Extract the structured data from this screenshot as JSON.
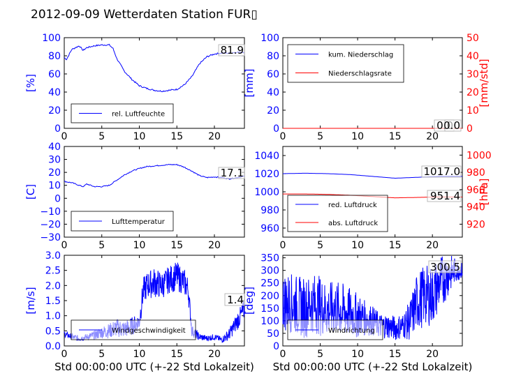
{
  "title": "2012-09-09 Wetterdaten Station FUR▯",
  "colors": {
    "primary": "#0000ff",
    "secondary": "#ff0000",
    "axis": "#000000"
  },
  "chart_data": [
    {
      "type": "line",
      "ylabel": "[%]",
      "ylim": [
        0,
        100
      ],
      "xlim": [
        0,
        24
      ],
      "xticks": [
        0,
        5,
        10,
        15,
        20
      ],
      "yticks": [
        0,
        20,
        40,
        60,
        80,
        100
      ],
      "readout": "81.9",
      "legend_placement": "lower-left",
      "series": [
        {
          "name": "rel. Luftfeuchte",
          "color": "#0000ff",
          "x": [
            0,
            0.3,
            1,
            2,
            2.5,
            3,
            4,
            5,
            6,
            6.5,
            7,
            8,
            9,
            10,
            11,
            12,
            13,
            14,
            15,
            16,
            17,
            18,
            19,
            20,
            21,
            22,
            23,
            24
          ],
          "y": [
            78,
            76,
            87,
            91,
            86,
            89,
            91,
            92,
            92,
            88,
            77,
            63,
            54,
            47,
            44,
            42,
            41,
            42,
            43,
            48,
            57,
            71,
            79,
            82,
            83,
            83,
            84,
            84
          ]
        }
      ]
    },
    {
      "type": "line",
      "ylabel": "[mm]",
      "ylabel_right": "[mm/std]",
      "ylim": [
        0,
        100
      ],
      "ylim_right": [
        0,
        50
      ],
      "xlim": [
        0,
        24
      ],
      "xticks": [
        0,
        5,
        10,
        15,
        20
      ],
      "yticks": [
        0,
        20,
        40,
        60,
        80,
        100
      ],
      "yticks_right": [
        0,
        10,
        20,
        30,
        40,
        50
      ],
      "readout": "0.0",
      "readout2": "0.0",
      "legend_placement": "upper-left",
      "series": [
        {
          "name": "kum. Niederschlag",
          "color": "#0000ff",
          "axis": "left",
          "x": [
            0,
            24
          ],
          "y": [
            0,
            0
          ]
        },
        {
          "name": "Niederschlagsrate",
          "color": "#ff0000",
          "axis": "right",
          "x": [
            0,
            24
          ],
          "y": [
            0,
            0
          ]
        }
      ]
    },
    {
      "type": "line",
      "ylabel": "[C]",
      "ylim": [
        -30,
        40
      ],
      "xlim": [
        0,
        24
      ],
      "xticks": [
        0,
        5,
        10,
        15,
        20
      ],
      "yticks": [
        -30,
        -20,
        -10,
        0,
        10,
        20,
        30,
        40
      ],
      "readout": "17.1",
      "legend_placement": "lower-left",
      "series": [
        {
          "name": "Lufttemperatur",
          "color": "#0000ff",
          "x": [
            0,
            1,
            2,
            2.5,
            3,
            4,
            5,
            6,
            7,
            8,
            9,
            10,
            11,
            12,
            13,
            14,
            15,
            16,
            17,
            18,
            19,
            20,
            21,
            22,
            23,
            24
          ],
          "y": [
            13,
            12,
            10,
            9,
            11,
            9,
            9,
            10,
            14,
            18,
            21,
            23,
            24.5,
            25,
            25.5,
            26,
            26,
            24,
            21,
            17.5,
            16,
            16.5,
            16,
            15,
            16,
            17
          ]
        }
      ]
    },
    {
      "type": "line",
      "ylabel_right": "[hPa]",
      "ylim": [
        950,
        1050
      ],
      "ylim_right": [
        905,
        1010
      ],
      "xlim": [
        0,
        24
      ],
      "xticks": [
        0,
        5,
        10,
        15,
        20
      ],
      "yticks": [
        960,
        980,
        1000,
        1020,
        1040
      ],
      "yticks_right": [
        920,
        940,
        960,
        980,
        1000
      ],
      "readout": "1017.0",
      "readout2": "951.4",
      "legend_placement": "lower-left",
      "series": [
        {
          "name": "red. Luftdruck",
          "color": "#0000ff",
          "axis": "left",
          "x": [
            0,
            3,
            6,
            9,
            12,
            15,
            18,
            21,
            24
          ],
          "y": [
            1020,
            1020.5,
            1020,
            1019,
            1017,
            1015,
            1016,
            1017,
            1017
          ]
        },
        {
          "name": "abs. Luftdruck",
          "color": "#ff0000",
          "axis": "right",
          "x": [
            0,
            3,
            6,
            9,
            12,
            15,
            18,
            21,
            24
          ],
          "y": [
            955,
            955,
            954.5,
            953.5,
            952,
            950.5,
            951,
            951.5,
            951.4
          ]
        }
      ]
    },
    {
      "type": "line",
      "ylabel": "[m/s]",
      "xlabel": "Std 00:00:00 UTC (+-22 Std Lokalzeit)",
      "ylim": [
        0,
        3
      ],
      "xlim": [
        0,
        24
      ],
      "xticks": [
        0,
        5,
        10,
        15,
        20
      ],
      "yticks": [
        0,
        0.5,
        1,
        1.5,
        2,
        2.5,
        3
      ],
      "ytick_labels": [
        "0.0",
        "0.5",
        "1.0",
        "1.5",
        "2.0",
        "2.5",
        "3.0"
      ],
      "readout": "1.4",
      "legend_placement": "lower-left",
      "series": [
        {
          "name": "Windgeschwindigkeit",
          "color": "#0000ff",
          "noisy": true,
          "x": [
            0,
            1,
            2,
            3,
            4,
            5,
            6,
            7,
            8,
            9,
            10,
            10.5,
            11,
            12,
            13,
            14,
            15,
            15.5,
            16,
            16.5,
            17,
            18,
            19,
            20,
            21,
            22,
            23,
            24
          ],
          "y": [
            0.4,
            0.3,
            0.25,
            0.3,
            0.35,
            0.45,
            0.5,
            0.6,
            0.55,
            0.65,
            0.8,
            1.8,
            2.0,
            2.1,
            2.0,
            2.2,
            2.3,
            2.2,
            2.1,
            1.9,
            0.5,
            0.3,
            0.25,
            0.3,
            0.2,
            0.4,
            0.8,
            1.2
          ],
          "noise": [
            0.1,
            0.1,
            0.1,
            0.1,
            0.15,
            0.2,
            0.25,
            0.3,
            0.3,
            0.3,
            0.3,
            0.45,
            0.45,
            0.5,
            0.45,
            0.45,
            0.5,
            0.45,
            0.45,
            0.4,
            0.2,
            0.12,
            0.1,
            0.1,
            0.1,
            0.2,
            0.3,
            0.35
          ]
        }
      ]
    },
    {
      "type": "line",
      "ylabel": "[deg]",
      "xlabel": "Std 00:00:00 UTC (+-22 Std Lokalzeit)",
      "ylim": [
        0,
        360
      ],
      "xlim": [
        0,
        24
      ],
      "xticks": [
        0,
        5,
        10,
        15,
        20
      ],
      "yticks": [
        0,
        50,
        100,
        150,
        200,
        250,
        300,
        350
      ],
      "readout": "300.5",
      "legend_placement": "lower-left",
      "series": [
        {
          "name": "Windrichtung",
          "color": "#0000ff",
          "noisy": true,
          "x": [
            0,
            1,
            2,
            3,
            4,
            5,
            6,
            7,
            8,
            9,
            10,
            11,
            12,
            13,
            14,
            15,
            16,
            17,
            18,
            19,
            20,
            21,
            22,
            23,
            24
          ],
          "y": [
            180,
            170,
            160,
            150,
            170,
            160,
            140,
            150,
            140,
            130,
            120,
            110,
            100,
            80,
            80,
            70,
            80,
            100,
            180,
            200,
            200,
            250,
            280,
            300,
            300
          ],
          "noise": [
            120,
            120,
            120,
            120,
            120,
            120,
            110,
            110,
            110,
            100,
            90,
            70,
            60,
            50,
            50,
            50,
            50,
            80,
            120,
            120,
            120,
            110,
            90,
            50,
            30
          ]
        }
      ]
    }
  ]
}
